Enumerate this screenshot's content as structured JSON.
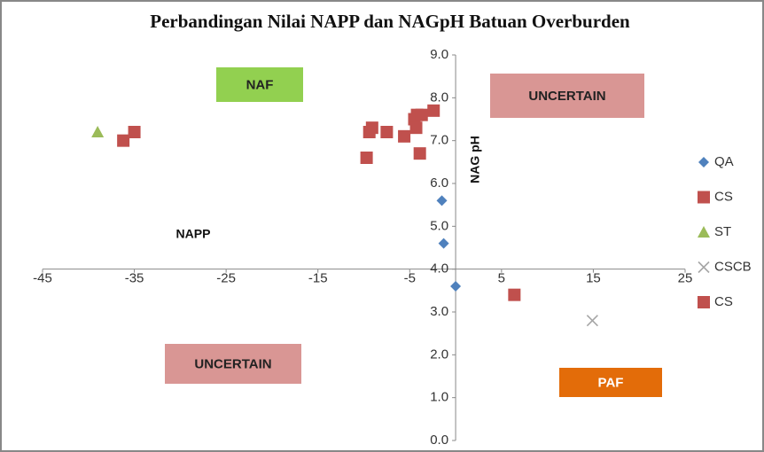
{
  "chart_data": {
    "type": "scatter",
    "title": "Perbandingan Nilai NAPP dan NAGpH  Batuan Overburden",
    "x_label": "NAPP",
    "y_label": "NAG pH",
    "xlim": [
      -45,
      25
    ],
    "xticks": [
      -45,
      -35,
      -25,
      -15,
      -5,
      5,
      15,
      25
    ],
    "ylim": [
      0,
      9
    ],
    "yticks": [
      {
        "value": 0,
        "label": "0.0"
      },
      {
        "value": 1,
        "label": "1.0"
      },
      {
        "value": 2,
        "label": "2.0"
      },
      {
        "value": 3,
        "label": "3.0"
      },
      {
        "value": 4,
        "label": "4.0"
      },
      {
        "value": 5,
        "label": "5.0"
      },
      {
        "value": 6,
        "label": "6.0"
      },
      {
        "value": 7,
        "label": "7.0"
      },
      {
        "value": 8,
        "label": "8.0"
      },
      {
        "value": 9,
        "label": "9.0"
      }
    ],
    "x_axis_crosses": 4,
    "series": [
      {
        "name": "QA",
        "color": "#4f81bd",
        "marker": "diamond",
        "x": [
          -1.5,
          -1.3,
          0
        ],
        "values": [
          5.6,
          4.6,
          3.6
        ]
      },
      {
        "name": "CS",
        "color": "#c0504d",
        "marker": "square",
        "x": [
          -36.2,
          -35.0,
          -9.7,
          -9.4,
          -9.1,
          -7.5,
          -5.6,
          -4.5,
          -4.3,
          -4.2,
          -3.9,
          -3.7,
          -2.4
        ],
        "values": [
          7.0,
          7.2,
          6.6,
          7.2,
          7.3,
          7.2,
          7.1,
          7.5,
          7.3,
          7.6,
          6.7,
          7.6,
          7.7
        ]
      },
      {
        "name": "ST",
        "color": "#9bbb59",
        "marker": "triangle",
        "x": [
          -39.0
        ],
        "values": [
          7.2
        ]
      },
      {
        "name": "CSCB",
        "color": "#a6a6a6",
        "marker": "x",
        "x": [
          14.9
        ],
        "values": [
          2.8
        ]
      },
      {
        "name": "CS",
        "color": "#c0504d",
        "marker": "square",
        "x": [
          6.4
        ],
        "values": [
          3.4
        ]
      }
    ],
    "annotations": [
      {
        "text": "NAF",
        "color": "#92d050"
      },
      {
        "text": "UNCERTAIN",
        "color": "#d99694"
      },
      {
        "text": "UNCERTAIN",
        "color": "#d99694"
      },
      {
        "text": "PAF",
        "color": "#e36c09"
      }
    ]
  }
}
